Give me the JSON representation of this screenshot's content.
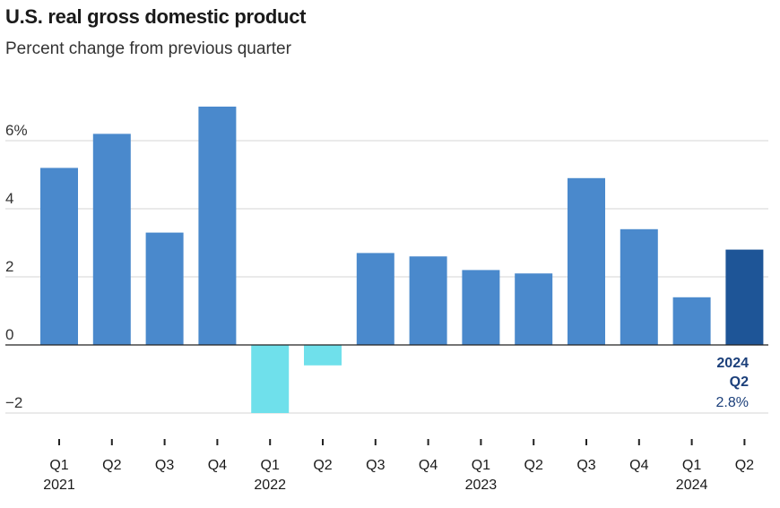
{
  "header": {
    "title": "U.S. real gross domestic product",
    "subtitle": "Percent change from previous quarter"
  },
  "colors": {
    "bar_positive": "#4a89cc",
    "bar_negative": "#6fe0eb",
    "bar_highlight": "#1e5597",
    "grid": "#d6d6d6",
    "zero_line": "#222222"
  },
  "chart_data": {
    "type": "bar",
    "title": "U.S. real gross domestic product",
    "subtitle": "Percent change from previous quarter",
    "xlabel": "",
    "ylabel": "",
    "ylim": [
      -2.5,
      7.5
    ],
    "yticks": [
      {
        "value": 6,
        "label": "6%"
      },
      {
        "value": 4,
        "label": "4"
      },
      {
        "value": 2,
        "label": "2"
      },
      {
        "value": 0,
        "label": "0"
      },
      {
        "value": -2,
        "label": "−2"
      }
    ],
    "grid": true,
    "categories": [
      "Q1",
      "Q2",
      "Q3",
      "Q4",
      "Q1",
      "Q2",
      "Q3",
      "Q4",
      "Q1",
      "Q2",
      "Q3",
      "Q4",
      "Q1",
      "Q2"
    ],
    "years": [
      {
        "label": "2021",
        "index": 0
      },
      {
        "label": "2022",
        "index": 4
      },
      {
        "label": "2023",
        "index": 8
      },
      {
        "label": "2024",
        "index": 12
      }
    ],
    "values": [
      5.2,
      6.2,
      3.3,
      7.0,
      -2.0,
      -0.6,
      2.7,
      2.6,
      2.2,
      2.1,
      4.9,
      3.4,
      1.4,
      2.8
    ],
    "highlight": {
      "index": 13,
      "year": "2024",
      "quarter": "Q2",
      "value_label": "2.8%"
    }
  }
}
